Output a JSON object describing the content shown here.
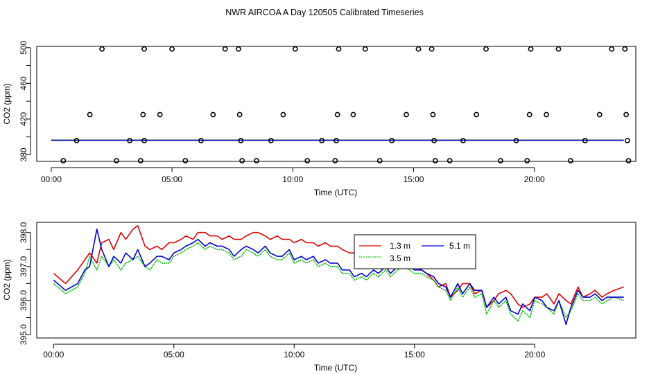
{
  "figure_title": "NWR AIRCOA A  Day 120505  Calibrated Timeseries",
  "chart_data": [
    {
      "type": "scatter",
      "title": "",
      "xlabel": "Time (UTC)",
      "ylabel": "CO2 (ppm)",
      "xlim": [
        -0.6,
        24.2
      ],
      "ylim": [
        372.6,
        501.4
      ],
      "x_ticks": [
        0,
        5,
        10,
        15,
        20
      ],
      "x_tick_labels": [
        "00:00",
        "05:00",
        "10:00",
        "15:00",
        "20:00"
      ],
      "y_ticks": [
        380,
        400,
        420,
        440,
        460,
        480,
        500
      ],
      "y_tick_labels": [
        "380",
        "",
        "420",
        "",
        "460",
        "",
        "500"
      ],
      "points": [
        [
          2.1,
          498.5
        ],
        [
          3.85,
          498.5
        ],
        [
          5.0,
          498.5
        ],
        [
          7.2,
          498.5
        ],
        [
          7.75,
          498.5
        ],
        [
          10.1,
          498.5
        ],
        [
          11.9,
          498.5
        ],
        [
          13.0,
          498.5
        ],
        [
          15.2,
          498.5
        ],
        [
          15.75,
          498.5
        ],
        [
          18.0,
          498.5
        ],
        [
          19.85,
          498.5
        ],
        [
          21.0,
          498.5
        ],
        [
          23.2,
          498.5
        ],
        [
          23.75,
          498.5
        ],
        [
          1.6,
          425
        ],
        [
          3.8,
          425
        ],
        [
          4.5,
          425
        ],
        [
          6.7,
          425
        ],
        [
          7.8,
          425
        ],
        [
          9.6,
          425
        ],
        [
          11.85,
          425
        ],
        [
          12.5,
          425
        ],
        [
          14.7,
          425
        ],
        [
          15.8,
          425
        ],
        [
          17.6,
          425
        ],
        [
          19.8,
          425
        ],
        [
          20.5,
          425
        ],
        [
          22.7,
          425
        ],
        [
          23.8,
          425
        ],
        [
          1.05,
          395.9
        ],
        [
          3.25,
          395.9
        ],
        [
          3.85,
          395.9
        ],
        [
          6.2,
          395.9
        ],
        [
          7.85,
          395.9
        ],
        [
          9.1,
          395.9
        ],
        [
          11.2,
          395.9
        ],
        [
          11.8,
          395.9
        ],
        [
          14.1,
          395.9
        ],
        [
          15.85,
          395.9
        ],
        [
          17.05,
          395.9
        ],
        [
          19.25,
          395.9
        ],
        [
          22.1,
          395.9
        ],
        [
          23.85,
          395.9
        ],
        [
          0.5,
          373.4
        ],
        [
          2.7,
          373.4
        ],
        [
          3.7,
          373.4
        ],
        [
          5.55,
          373.4
        ],
        [
          7.9,
          373.4
        ],
        [
          8.5,
          373.4
        ],
        [
          10.6,
          373.4
        ],
        [
          11.75,
          373.4
        ],
        [
          13.6,
          373.4
        ],
        [
          15.9,
          373.4
        ],
        [
          16.5,
          373.4
        ],
        [
          18.6,
          373.4
        ],
        [
          19.7,
          373.4
        ],
        [
          21.5,
          373.4
        ],
        [
          23.9,
          373.4
        ]
      ],
      "series": [
        {
          "name": "1.3 m",
          "color": "#dd0000",
          "values": [
            [
              0,
              396.4
            ],
            [
              23.7,
              396.4
            ]
          ]
        },
        {
          "name": "3.5 m",
          "color": "#00bb00",
          "values": [
            [
              0,
              396.2
            ],
            [
              23.7,
              396.2
            ]
          ]
        },
        {
          "name": "5.1 m",
          "color": "#0000cc",
          "values": [
            [
              0,
              396.3
            ],
            [
              23.7,
              396.3
            ]
          ]
        }
      ]
    },
    {
      "type": "line",
      "title": "",
      "xlabel": "Time (UTC)",
      "ylabel": "CO2 (ppm)",
      "xlim": [
        -0.7,
        24.2
      ],
      "ylim": [
        394.9,
        398.3
      ],
      "x_ticks": [
        0,
        5,
        10,
        15,
        20
      ],
      "x_tick_labels": [
        "00:00",
        "05:00",
        "10:00",
        "15:00",
        "20:00"
      ],
      "y_ticks": [
        395.0,
        395.5,
        396.0,
        396.5,
        397.0,
        397.5,
        398.0
      ],
      "y_tick_labels": [
        "395.0",
        "",
        "396.0",
        "",
        "397.0",
        "",
        "398.0"
      ],
      "legend": {
        "position": "top-right",
        "entries": [
          "1.3 m",
          "5.1 m",
          "3.5 m"
        ]
      },
      "series": [
        {
          "name": "1.3 m",
          "color": "#dd0000",
          "x": [
            0,
            0.5,
            1,
            1.3,
            1.5,
            1.8,
            2,
            2.3,
            2.5,
            2.8,
            3,
            3.3,
            3.5,
            3.8,
            4,
            4.3,
            4.5,
            4.8,
            5,
            5.3,
            5.5,
            5.8,
            6,
            6.3,
            6.5,
            6.8,
            7,
            7.3,
            7.5,
            7.8,
            8,
            8.3,
            8.5,
            8.8,
            9,
            9.3,
            9.5,
            9.8,
            10,
            10.3,
            10.5,
            10.8,
            11,
            11.3,
            11.5,
            11.8,
            12,
            12.3,
            12.5,
            12.8,
            13,
            13.3,
            13.5,
            13.8,
            14,
            14.3,
            14.5,
            14.8,
            15,
            15.3,
            15.5,
            15.8,
            16,
            16.3,
            16.5,
            16.8,
            17,
            17.3,
            17.5,
            17.8,
            18,
            18.3,
            18.5,
            18.8,
            19,
            19.3,
            19.5,
            19.8,
            20,
            20.3,
            20.5,
            20.8,
            21,
            21.3,
            21.5,
            21.8,
            22,
            22.3,
            22.5,
            22.8,
            23,
            23.3,
            23.7
          ],
          "values": [
            396.8,
            396.5,
            396.9,
            397.2,
            397.4,
            397.1,
            397.7,
            397.8,
            397.5,
            398.0,
            397.8,
            398.1,
            398.2,
            397.6,
            397.5,
            397.6,
            397.5,
            397.7,
            397.7,
            397.8,
            397.9,
            397.8,
            398.0,
            398.0,
            397.9,
            397.9,
            397.8,
            397.9,
            397.8,
            397.8,
            397.9,
            398.0,
            398.0,
            397.9,
            397.8,
            397.9,
            397.8,
            397.8,
            397.7,
            397.8,
            397.7,
            397.7,
            397.6,
            397.7,
            397.6,
            397.6,
            397.5,
            397.4,
            397.4,
            397.3,
            397.2,
            397.2,
            397.2,
            397.2,
            397.1,
            397.1,
            397.4,
            397.2,
            397.0,
            396.9,
            396.8,
            396.6,
            396.4,
            396.5,
            396.1,
            396.3,
            396.5,
            396.5,
            396.2,
            396.3,
            395.8,
            396.0,
            396.2,
            396.3,
            396.2,
            395.9,
            395.8,
            395.9,
            396.1,
            396.1,
            396.2,
            395.9,
            396.2,
            396.0,
            395.9,
            396.4,
            396.1,
            396.2,
            396.3,
            396.1,
            396.2,
            396.3,
            396.4
          ]
        },
        {
          "name": "3.5 m",
          "color": "#00bb00",
          "x": [
            0,
            0.5,
            1,
            1.3,
            1.5,
            1.8,
            2,
            2.3,
            2.5,
            2.8,
            3,
            3.3,
            3.5,
            3.8,
            4,
            4.3,
            4.5,
            4.8,
            5,
            5.3,
            5.5,
            5.8,
            6,
            6.3,
            6.5,
            6.8,
            7,
            7.3,
            7.5,
            7.8,
            8,
            8.3,
            8.5,
            8.8,
            9,
            9.3,
            9.5,
            9.8,
            10,
            10.3,
            10.5,
            10.8,
            11,
            11.3,
            11.5,
            11.8,
            12,
            12.3,
            12.5,
            12.8,
            13,
            13.3,
            13.5,
            13.8,
            14,
            14.3,
            14.5,
            14.8,
            15,
            15.3,
            15.5,
            15.8,
            16,
            16.3,
            16.5,
            16.8,
            17,
            17.3,
            17.5,
            17.8,
            18,
            18.3,
            18.5,
            18.8,
            19,
            19.3,
            19.5,
            19.8,
            20,
            20.3,
            20.5,
            20.8,
            21,
            21.3,
            21.5,
            21.8,
            22,
            22.3,
            22.5,
            22.8,
            23,
            23.3,
            23.7
          ],
          "values": [
            396.5,
            396.2,
            396.4,
            396.8,
            397.3,
            396.9,
            397.3,
            397.0,
            397.2,
            396.9,
            397.1,
            397.2,
            397.3,
            397.0,
            396.9,
            397.2,
            397.1,
            397.1,
            397.3,
            397.4,
            397.5,
            397.6,
            397.7,
            397.5,
            397.6,
            397.5,
            397.5,
            397.4,
            397.2,
            397.3,
            397.5,
            397.4,
            397.3,
            397.5,
            397.3,
            397.2,
            397.2,
            397.4,
            397.1,
            397.2,
            397.1,
            397.2,
            397.0,
            397.1,
            397.0,
            397.0,
            396.8,
            396.8,
            396.6,
            396.7,
            396.6,
            396.8,
            396.7,
            396.9,
            396.7,
            396.9,
            397.0,
            396.9,
            396.8,
            396.8,
            396.7,
            396.6,
            396.4,
            396.3,
            396.0,
            396.4,
            396.1,
            396.4,
            396.1,
            396.2,
            395.6,
            396.0,
            395.8,
            396.0,
            395.6,
            395.4,
            395.7,
            395.5,
            396.0,
            395.9,
            395.8,
            395.6,
            396.0,
            395.5,
            395.7,
            396.2,
            396.0,
            396.0,
            396.1,
            395.9,
            396.0,
            396.1,
            396.0
          ]
        },
        {
          "name": "5.1 m",
          "color": "#0000cc",
          "x": [
            0,
            0.5,
            1,
            1.3,
            1.5,
            1.8,
            2,
            2.3,
            2.5,
            2.8,
            3,
            3.3,
            3.5,
            3.8,
            4,
            4.3,
            4.5,
            4.8,
            5,
            5.3,
            5.5,
            5.8,
            6,
            6.3,
            6.5,
            6.8,
            7,
            7.3,
            7.5,
            7.8,
            8,
            8.3,
            8.5,
            8.8,
            9,
            9.3,
            9.5,
            9.8,
            10,
            10.3,
            10.5,
            10.8,
            11,
            11.3,
            11.5,
            11.8,
            12,
            12.3,
            12.5,
            12.8,
            13,
            13.3,
            13.5,
            13.8,
            14,
            14.3,
            14.5,
            14.8,
            15,
            15.3,
            15.5,
            15.8,
            16,
            16.3,
            16.5,
            16.8,
            17,
            17.3,
            17.5,
            17.8,
            18,
            18.3,
            18.5,
            18.8,
            19,
            19.3,
            19.5,
            19.8,
            20,
            20.3,
            20.5,
            20.8,
            21,
            21.3,
            21.5,
            21.8,
            22,
            22.3,
            22.5,
            22.8,
            23,
            23.3,
            23.7
          ],
          "values": [
            396.6,
            396.3,
            396.5,
            396.9,
            397.0,
            398.1,
            397.5,
            397.0,
            397.3,
            397.1,
            397.4,
            397.2,
            397.5,
            397.0,
            397.1,
            397.3,
            397.3,
            397.2,
            397.4,
            397.5,
            397.6,
            397.7,
            397.8,
            397.6,
            397.7,
            397.6,
            397.6,
            397.5,
            397.3,
            397.5,
            397.6,
            397.5,
            397.4,
            397.6,
            397.4,
            397.3,
            397.3,
            397.5,
            397.2,
            397.3,
            397.2,
            397.3,
            397.1,
            397.2,
            397.1,
            397.1,
            396.9,
            396.9,
            396.7,
            396.8,
            396.7,
            396.9,
            396.8,
            397.0,
            396.8,
            397.0,
            397.1,
            397.0,
            396.9,
            396.9,
            396.8,
            396.7,
            396.5,
            396.4,
            396.1,
            396.5,
            396.2,
            396.5,
            396.3,
            396.3,
            395.8,
            396.1,
            395.9,
            396.1,
            395.7,
            395.6,
            395.9,
            395.7,
            396.1,
            396.0,
            395.8,
            395.7,
            396.0,
            395.3,
            395.8,
            396.3,
            396.1,
            396.1,
            396.2,
            396.0,
            396.1,
            396.1,
            396.1
          ]
        }
      ]
    }
  ]
}
